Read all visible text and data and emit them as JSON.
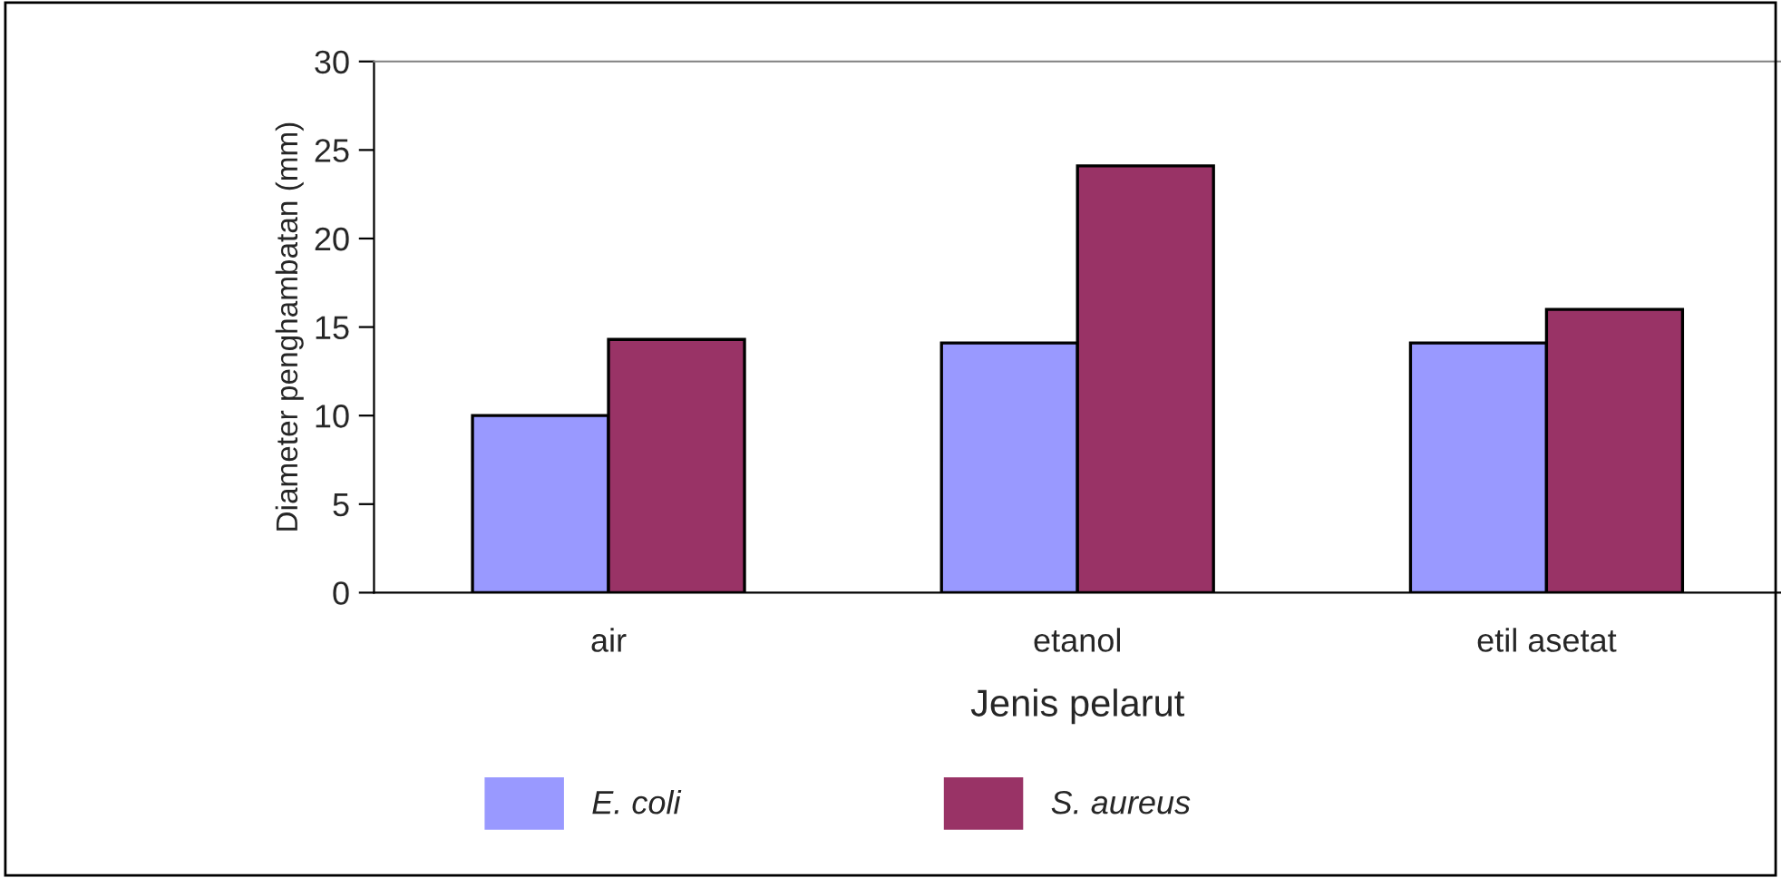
{
  "chart_data": {
    "type": "bar",
    "xlabel": "Jenis pelarut",
    "ylabel": "Diameter penghambatan (mm)",
    "categories": [
      "air",
      "etanol",
      "etil asetat"
    ],
    "series": [
      {
        "name": "E. coli",
        "color": "#9999ff",
        "values": [
          10,
          14.1,
          14.1
        ]
      },
      {
        "name": "S. aureus",
        "color": "#993366",
        "values": [
          14.3,
          24.1,
          16
        ]
      }
    ],
    "ylim": [
      0,
      30
    ],
    "yticks": [
      0,
      5,
      10,
      15,
      20,
      25,
      30
    ],
    "grid": false,
    "legend": "bottom"
  }
}
